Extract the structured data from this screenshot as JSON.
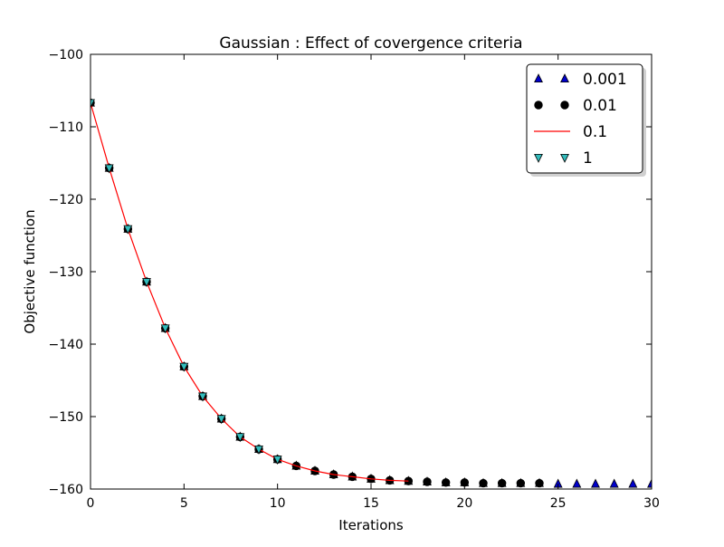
{
  "chart_data": {
    "type": "line",
    "title": "Gaussian : Effect of covergence criteria",
    "xlabel": "Iterations",
    "ylabel": "Objective function",
    "xlim": [
      0,
      30
    ],
    "ylim": [
      -160,
      -100
    ],
    "xticks": [
      0,
      5,
      10,
      15,
      20,
      25,
      30
    ],
    "xtick_labels": [
      "0",
      "5",
      "10",
      "15",
      "20",
      "25",
      "30"
    ],
    "yticks": [
      -100,
      -110,
      -120,
      -130,
      -140,
      -150,
      -160
    ],
    "ytick_labels": [
      "−100",
      "−110",
      "−120",
      "−130",
      "−140",
      "−150",
      "−160"
    ],
    "grid": false,
    "legend_position": "top-right",
    "series": [
      {
        "name": "0.001",
        "style": "markers",
        "marker": "triangle-up",
        "color": "#0000cc",
        "x": [
          0,
          1,
          2,
          3,
          4,
          5,
          6,
          7,
          8,
          9,
          10,
          11,
          12,
          13,
          14,
          15,
          16,
          17,
          18,
          19,
          20,
          21,
          22,
          23,
          24,
          25,
          26,
          27,
          28,
          29,
          30
        ],
        "y": [
          -106.7,
          -115.7,
          -124.1,
          -131.4,
          -137.8,
          -143.1,
          -147.2,
          -150.3,
          -152.8,
          -154.5,
          -155.9,
          -156.8,
          -157.5,
          -158.0,
          -158.3,
          -158.6,
          -158.8,
          -158.9,
          -159.0,
          -159.1,
          -159.1,
          -159.2,
          -159.2,
          -159.2,
          -159.2,
          -159.3,
          -159.3,
          -159.3,
          -159.3,
          -159.3,
          -159.3
        ]
      },
      {
        "name": "0.01",
        "style": "markers",
        "marker": "circle",
        "color": "#000000",
        "x": [
          0,
          1,
          2,
          3,
          4,
          5,
          6,
          7,
          8,
          9,
          10,
          11,
          12,
          13,
          14,
          15,
          16,
          17,
          18,
          19,
          20,
          21,
          22,
          23,
          24
        ],
        "y": [
          -106.7,
          -115.7,
          -124.1,
          -131.4,
          -137.8,
          -143.1,
          -147.2,
          -150.3,
          -152.8,
          -154.5,
          -155.9,
          -156.8,
          -157.5,
          -158.0,
          -158.3,
          -158.6,
          -158.8,
          -158.9,
          -159.0,
          -159.1,
          -159.1,
          -159.2,
          -159.2,
          -159.2,
          -159.2
        ]
      },
      {
        "name": "0.1",
        "style": "line",
        "color": "#ff0000",
        "x": [
          0,
          1,
          2,
          3,
          4,
          5,
          6,
          7,
          8,
          9,
          10,
          11,
          12,
          13,
          14,
          15,
          16,
          17
        ],
        "y": [
          -106.7,
          -115.7,
          -124.1,
          -131.4,
          -137.8,
          -143.1,
          -147.2,
          -150.3,
          -152.8,
          -154.5,
          -155.9,
          -156.8,
          -157.5,
          -158.0,
          -158.3,
          -158.6,
          -158.8,
          -158.9
        ]
      },
      {
        "name": "1",
        "style": "markers",
        "marker": "triangle-down",
        "color": "#33bbbb",
        "x": [
          0,
          1,
          2,
          3,
          4,
          5,
          6,
          7,
          8,
          9,
          10
        ],
        "y": [
          -106.7,
          -115.7,
          -124.1,
          -131.4,
          -137.8,
          -143.1,
          -147.2,
          -150.3,
          -152.8,
          -154.5,
          -155.9
        ]
      }
    ]
  }
}
